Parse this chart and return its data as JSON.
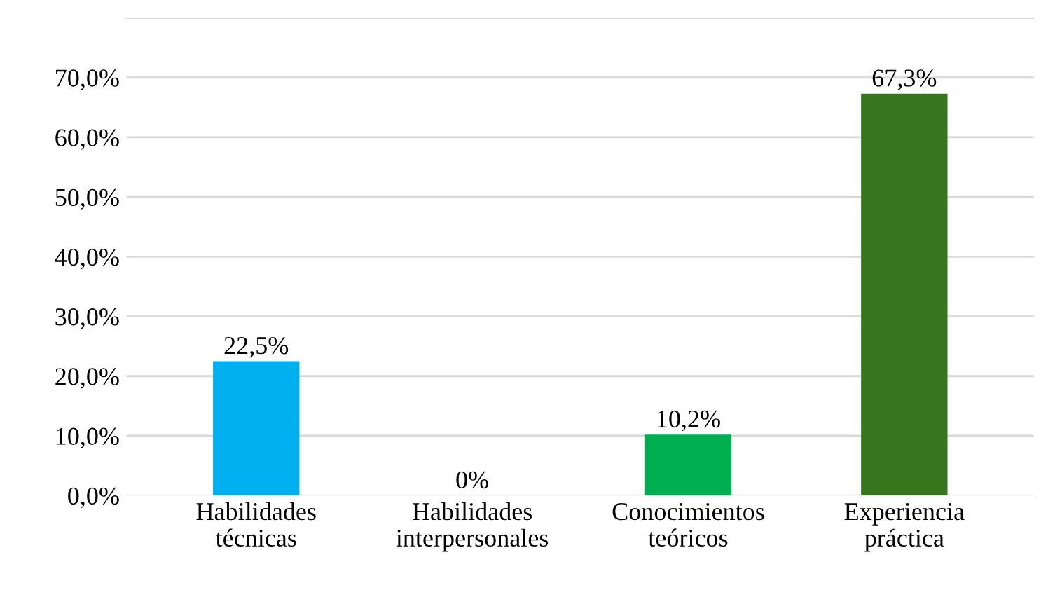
{
  "chart_data": {
    "type": "bar",
    "categories": [
      "Habilidades\ntécnicas",
      "Habilidades\ninterpersonales",
      "Conocimientos\nteóricos",
      "Experiencia\npráctica"
    ],
    "values": [
      22.5,
      0,
      10.2,
      67.3
    ],
    "colors": [
      "#00b0f0",
      "#38761d",
      "#00b050",
      "#38761d"
    ],
    "value_labels": [
      "22,5%",
      "0%",
      "10,2%",
      "67,3%"
    ],
    "ylim": [
      0,
      80
    ],
    "yticks": [
      {
        "value": 0,
        "label": "0,0%"
      },
      {
        "value": 10,
        "label": "10,0%"
      },
      {
        "value": 20,
        "label": "20,0%"
      },
      {
        "value": 30,
        "label": "30,0%"
      },
      {
        "value": 40,
        "label": "40,0%"
      },
      {
        "value": 50,
        "label": "50,0%"
      },
      {
        "value": 60,
        "label": "60,0%"
      },
      {
        "value": 70,
        "label": "70,0%"
      },
      {
        "value": 80,
        "label": null
      }
    ],
    "grid": "y"
  }
}
